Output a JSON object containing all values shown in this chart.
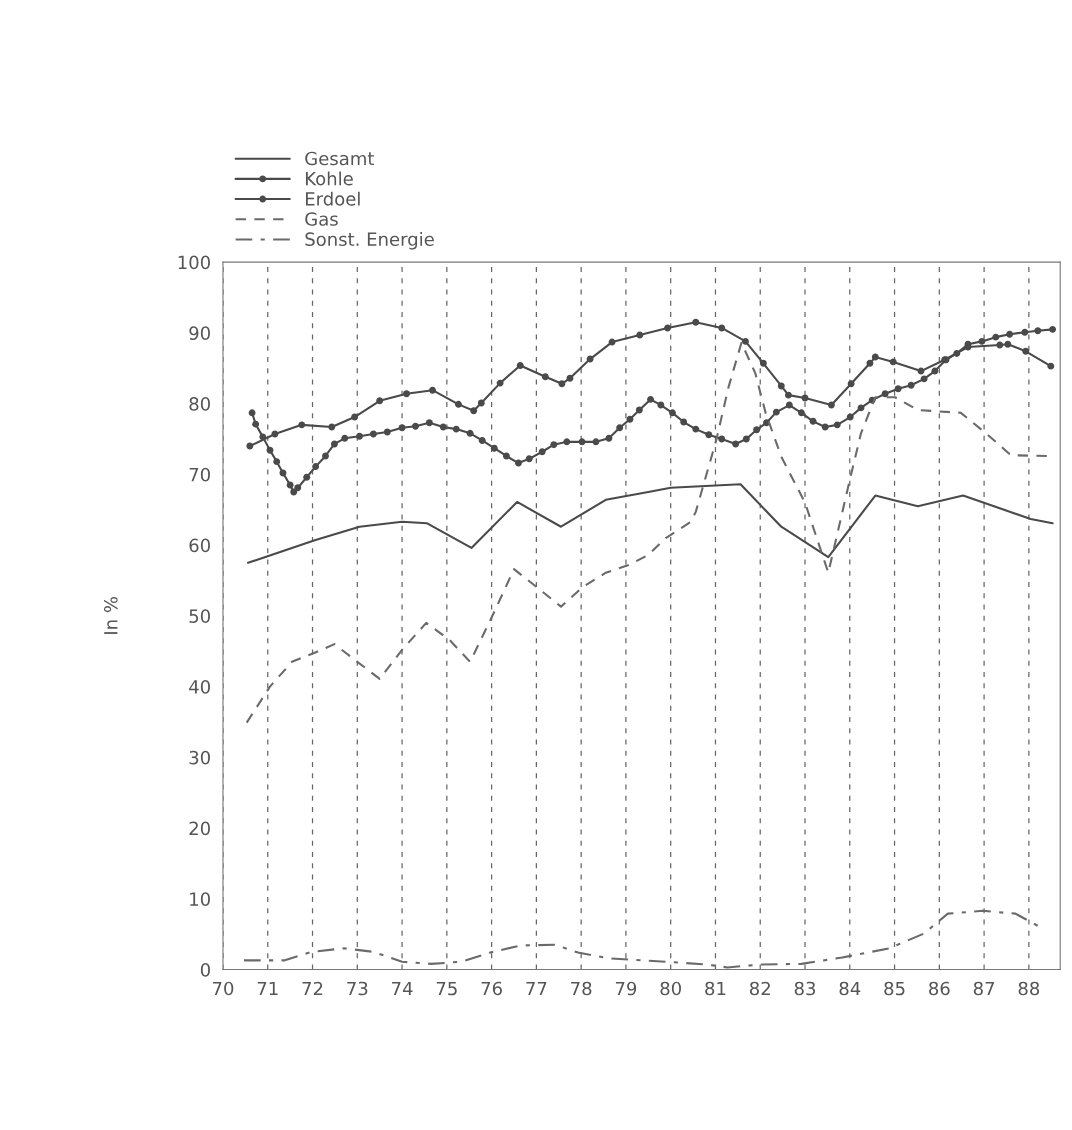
{
  "chart_data": {
    "type": "line",
    "ylabel": "In %",
    "xlim": [
      70,
      88.7
    ],
    "ylim": [
      0,
      100
    ],
    "xticks": [
      70,
      71,
      72,
      73,
      74,
      75,
      76,
      77,
      78,
      79,
      80,
      81,
      82,
      83,
      84,
      85,
      86,
      87,
      88
    ],
    "yticks": [
      0,
      10,
      20,
      30,
      40,
      50,
      60,
      70,
      80,
      90,
      100
    ],
    "grid": "x",
    "legend": "top left",
    "series": [
      {
        "name": "Gesamt",
        "color": "#4a4a4a",
        "marker": "none",
        "line_style": "solid",
        "x": [
          70.56,
          72.05,
          73.05,
          74.0,
          74.55,
          75.55,
          76.57,
          77.55,
          78.55,
          79.5,
          80.0,
          81.56,
          82.47,
          83.52,
          84.57,
          85.52,
          86.53,
          88.04,
          88.53
        ],
        "values": [
          57.5,
          60.7,
          62.6,
          63.3,
          63.1,
          59.6,
          66.1,
          62.6,
          66.4,
          67.5,
          68.1,
          68.6,
          62.6,
          58.3,
          67.0,
          65.5,
          67.0,
          63.7,
          63.1
        ]
      },
      {
        "name": "Kohle",
        "color": "#4a4a4a",
        "marker": "circle",
        "line_style": "solid",
        "x": [
          70.65,
          70.73,
          70.89,
          71.05,
          71.2,
          71.34,
          71.5,
          71.58,
          71.67,
          71.87,
          72.07,
          72.29,
          72.49,
          72.72,
          73.05,
          73.36,
          73.67,
          74.0,
          74.3,
          74.61,
          74.92,
          75.21,
          75.52,
          75.79,
          76.06,
          76.33,
          76.6,
          76.84,
          77.13,
          77.39,
          77.68,
          78.02,
          78.33,
          78.62,
          78.86,
          79.09,
          79.3,
          79.55,
          79.78,
          80.04,
          80.29,
          80.56,
          80.85,
          81.14,
          81.45,
          81.69,
          81.92,
          82.14,
          82.36,
          82.65,
          82.92,
          83.18,
          83.45,
          83.72,
          84.01,
          84.25,
          84.5,
          84.79,
          85.08,
          85.37,
          85.66,
          85.9,
          86.15,
          86.39,
          86.64,
          86.95,
          87.26,
          87.57,
          87.91,
          88.2,
          88.53
        ],
        "values": [
          78.7,
          77.1,
          75.3,
          73.4,
          71.8,
          70.2,
          68.5,
          67.5,
          68.1,
          69.6,
          71.1,
          72.6,
          74.3,
          75.1,
          75.4,
          75.7,
          76.0,
          76.6,
          76.8,
          77.3,
          76.7,
          76.4,
          75.8,
          74.8,
          73.7,
          72.6,
          71.6,
          72.2,
          73.2,
          74.2,
          74.6,
          74.6,
          74.6,
          75.1,
          76.6,
          77.8,
          79.1,
          80.6,
          79.8,
          78.7,
          77.4,
          76.4,
          75.6,
          75.0,
          74.3,
          75.0,
          76.3,
          77.3,
          78.8,
          79.8,
          78.7,
          77.5,
          76.7,
          77.0,
          78.1,
          79.4,
          80.5,
          81.4,
          82.1,
          82.6,
          83.5,
          84.6,
          86.2,
          87.1,
          88.4,
          88.8,
          89.4,
          89.8,
          90.1,
          90.3,
          90.5
        ]
      },
      {
        "name": "Erdoel",
        "color": "#4a4a4a",
        "marker": "circle",
        "line_style": "solid",
        "x": [
          70.6,
          71.16,
          71.76,
          72.43,
          72.94,
          73.5,
          74.1,
          74.68,
          75.26,
          75.6,
          75.77,
          76.19,
          76.64,
          77.2,
          77.57,
          77.75,
          78.2,
          78.69,
          79.31,
          79.93,
          80.56,
          81.14,
          81.67,
          82.07,
          82.47,
          82.63,
          83.0,
          83.59,
          84.03,
          84.45,
          84.57,
          84.97,
          85.59,
          86.12,
          86.64,
          87.35,
          87.53,
          87.93,
          88.49
        ],
        "values": [
          74.0,
          75.7,
          77.0,
          76.7,
          78.1,
          80.4,
          81.4,
          81.9,
          79.9,
          79.0,
          80.1,
          82.9,
          85.4,
          83.8,
          82.8,
          83.6,
          86.3,
          88.7,
          89.7,
          90.7,
          91.5,
          90.7,
          88.8,
          85.7,
          82.5,
          81.2,
          80.8,
          79.8,
          82.8,
          85.7,
          86.6,
          85.9,
          84.6,
          86.2,
          88.0,
          88.3,
          88.4,
          87.4,
          85.3
        ]
      },
      {
        "name": "Gas",
        "color": "#6a6a6a",
        "marker": "none",
        "line_style": "dashed",
        "x": [
          70.53,
          71.05,
          71.54,
          72.09,
          72.49,
          73.0,
          73.5,
          74.0,
          74.54,
          75.06,
          75.52,
          76.01,
          76.5,
          77.02,
          77.55,
          78.02,
          78.55,
          79.06,
          79.5,
          79.89,
          80.45,
          80.56,
          81.02,
          81.29,
          81.58,
          81.89,
          82.12,
          82.47,
          83.0,
          83.52,
          84.0,
          84.25,
          84.57,
          85.01,
          85.52,
          86.48,
          87.08,
          87.6,
          88.46
        ],
        "values": [
          34.9,
          40.0,
          43.5,
          44.9,
          46.0,
          43.5,
          41.1,
          45.2,
          49.0,
          46.6,
          43.5,
          49.9,
          56.6,
          54.0,
          51.3,
          54.0,
          56.1,
          57.2,
          58.6,
          61.0,
          63.3,
          64.7,
          74.9,
          82.3,
          88.6,
          84.3,
          78.7,
          72.5,
          66.0,
          56.1,
          69.2,
          75.8,
          80.9,
          80.9,
          79.1,
          78.7,
          75.6,
          72.7,
          72.6
        ]
      },
      {
        "name": "Sonst. Energie",
        "color": "#6a6a6a",
        "marker": "none",
        "line_style": "dashdot",
        "x": [
          70.47,
          71.38,
          71.98,
          72.7,
          73.36,
          74.0,
          74.65,
          75.32,
          75.97,
          76.64,
          77.42,
          77.93,
          78.6,
          79.91,
          80.82,
          81.27,
          82.0,
          82.92,
          83.83,
          84.88,
          85.66,
          86.19,
          86.97,
          87.7,
          88.28
        ],
        "values": [
          1.3,
          1.3,
          2.5,
          3.0,
          2.5,
          1.1,
          0.8,
          1.1,
          2.4,
          3.4,
          3.5,
          2.4,
          1.6,
          1.1,
          0.7,
          0.3,
          0.7,
          0.8,
          1.7,
          3.0,
          5.1,
          7.9,
          8.3,
          7.9,
          5.9
        ]
      }
    ]
  }
}
